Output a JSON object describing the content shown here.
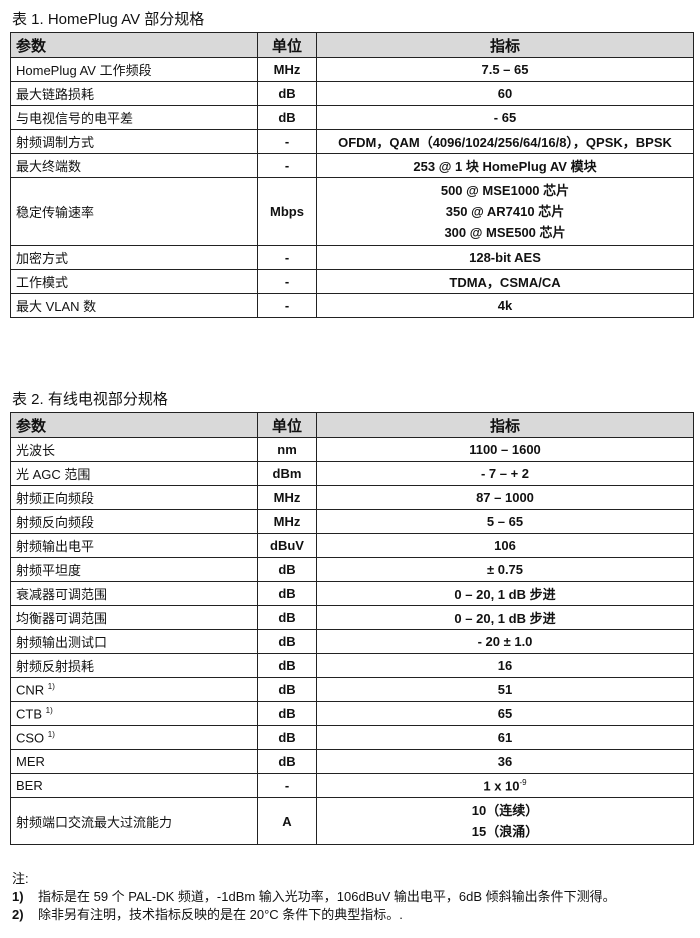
{
  "table1": {
    "caption": "表 1. HomePlug AV  部分规格",
    "headers": [
      "参数",
      "单位",
      "指标"
    ],
    "rows": [
      {
        "param": "HomePlug AV  工作频段",
        "unit": "MHz",
        "value": [
          "7.5 – 65"
        ]
      },
      {
        "param": "最大链路损耗",
        "unit": "dB",
        "value": [
          "60"
        ]
      },
      {
        "param": "与电视信号的电平差",
        "unit": "dB",
        "value": [
          "- 65"
        ]
      },
      {
        "param": "射频调制方式",
        "unit": "-",
        "value": [
          "OFDM，QAM（4096/1024/256/64/16/8），QPSK，BPSK"
        ]
      },
      {
        "param": "最大终端数",
        "unit": "-",
        "value": [
          "253 @ 1 块 HomePlug AV  模块"
        ]
      },
      {
        "param": "稳定传输速率",
        "unit": "Mbps",
        "value": [
          "500 @ MSE1000 芯片",
          "350 @ AR7410 芯片",
          "300 @ MSE500 芯片"
        ]
      },
      {
        "param": "加密方式",
        "unit": "-",
        "value": [
          "128-bit AES"
        ]
      },
      {
        "param": "工作模式",
        "unit": "-",
        "value": [
          "TDMA，CSMA/CA"
        ]
      },
      {
        "param": "最大 VLAN 数",
        "unit": "-",
        "value": [
          "4k"
        ]
      }
    ]
  },
  "table2": {
    "caption": "表 2. 有线电视部分规格",
    "headers": [
      "参数",
      "单位",
      "指标"
    ],
    "rows": [
      {
        "param": "光波长",
        "unit": "nm",
        "value": [
          "1100 – 1600"
        ]
      },
      {
        "param": "光 AGC 范围",
        "unit": "dBm",
        "value": [
          "- 7 – + 2"
        ]
      },
      {
        "param": "射频正向频段",
        "unit": "MHz",
        "value": [
          "87 – 1000"
        ]
      },
      {
        "param": "射频反向频段",
        "unit": "MHz",
        "value": [
          "5 – 65"
        ]
      },
      {
        "param": "射频输出电平",
        "unit": "dBuV",
        "value": [
          "106"
        ]
      },
      {
        "param": "射频平坦度",
        "unit": "dB",
        "value": [
          "± 0.75"
        ]
      },
      {
        "param": "衰减器可调范围",
        "unit": "dB",
        "value": [
          "0  –  20, 1 dB 步进"
        ]
      },
      {
        "param": "均衡器可调范围",
        "unit": "dB",
        "value": [
          "0  –  20, 1 dB 步进"
        ]
      },
      {
        "param": "射频输出测试口",
        "unit": "dB",
        "value": [
          "- 20 ± 1.0"
        ]
      },
      {
        "param": "射频反射损耗",
        "unit": "dB",
        "value": [
          "16"
        ]
      },
      {
        "param": "CNR",
        "param_sup": "1)",
        "unit": "dB",
        "value": [
          "51"
        ]
      },
      {
        "param": "CTB",
        "param_sup": "1)",
        "unit": "dB",
        "value": [
          "65"
        ]
      },
      {
        "param": "CSO",
        "param_sup": "1)",
        "unit": "dB",
        "value": [
          "61"
        ]
      },
      {
        "param": "MER",
        "unit": "dB",
        "value": [
          "36"
        ]
      },
      {
        "param": "BER",
        "unit": "-",
        "value": [
          "1 x 10"
        ],
        "value_sup": "-9"
      },
      {
        "param": "射频端口交流最大过流能力",
        "unit": "A",
        "value": [
          "10（连续）",
          "15（浪涌）"
        ]
      }
    ]
  },
  "notes": {
    "title": "注:",
    "items": [
      {
        "num": "1)",
        "text": "指标是在 59 个 PAL-DK 频道，-1dBm 输入光功率，106dBuV 输出电平，6dB 倾斜输出条件下测得。"
      },
      {
        "num": "2)",
        "text": "除非另有注明，技术指标反映的是在 20°C  条件下的典型指标。."
      }
    ]
  }
}
